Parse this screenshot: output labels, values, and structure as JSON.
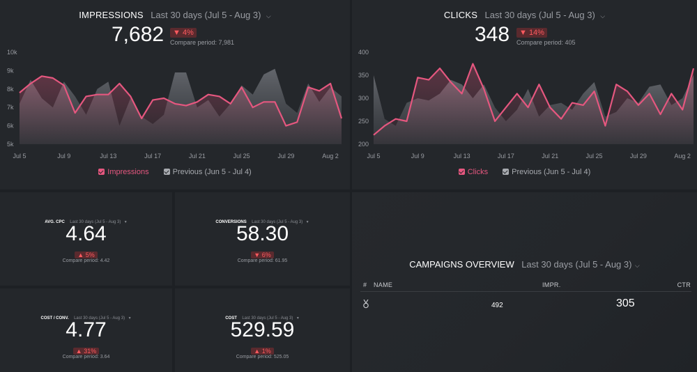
{
  "impressions": {
    "title": "IMPRESSIONS",
    "range": "Last 30 days (Jul 5 - Aug 3)",
    "value": "7,682",
    "badge": "▼ 4%",
    "compare": "Compare period: 7,981",
    "legend_current": "Impressions",
    "legend_previous": "Previous (Jun 5 - Jul 4)"
  },
  "clicks": {
    "title": "CLICKS",
    "range": "Last 30 days (Jul 5 - Aug 3)",
    "value": "348",
    "badge": "▼ 14%",
    "compare": "Compare period: 405",
    "legend_current": "Clicks",
    "legend_previous": "Previous (Jun 5 - Jul 4)"
  },
  "avg_cpc": {
    "title": "AVG. CPC",
    "range": "Last 30 days (Jul 5 - Aug 3)",
    "value": "4.64",
    "badge": "▲ 5%",
    "compare": "Compare period: 4.42"
  },
  "conversions": {
    "title": "CONVERSIONS",
    "range": "Last 30 days (Jul 5 - Aug 3)",
    "value": "58.30",
    "badge": "▼ 6%",
    "compare": "Compare period: 61.95"
  },
  "cost_conv": {
    "title": "COST / CONV.",
    "range": "Last 30 days (Jul 5 - Aug 3)",
    "value": "4.77",
    "badge": "▲ 31%",
    "compare": "Compare period: 3.64"
  },
  "cost": {
    "title": "COST",
    "range": "Last 30 days (Jul 5 - Aug 3)",
    "value": "529.59",
    "badge": "▲ 1%",
    "compare": "Compare period: 525.05"
  },
  "campaigns": {
    "title": "CAMPAIGNS OVERVIEW",
    "range": "Last 30 days (Jul 5 - Aug 3)",
    "columns": [
      "#",
      "NAME",
      "IMPR.",
      "CTR"
    ],
    "rows": [
      {
        "rank_icon": "medal-icon",
        "impr": "492",
        "ctr": "305"
      }
    ]
  },
  "chart_data": [
    {
      "type": "area",
      "title": "IMPRESSIONS",
      "x_ticks": [
        "Jul 5",
        "Jul 9",
        "Jul 13",
        "Jul 17",
        "Jul 21",
        "Jul 25",
        "Jul 29",
        "Aug 2"
      ],
      "y_ticks": [
        "5k",
        "6k",
        "7k",
        "8k",
        "9k",
        "10k"
      ],
      "ylim": [
        5000,
        10000
      ],
      "colors": {
        "current": "#e5577f",
        "previous": "#5a5d63"
      },
      "series": [
        {
          "name": "Impressions",
          "values": [
            7800,
            8300,
            8700,
            8600,
            8200,
            6700,
            7600,
            7700,
            7700,
            8300,
            7600,
            6400,
            7400,
            7500,
            7200,
            7100,
            7300,
            7700,
            7600,
            7200,
            8100,
            7000,
            7300,
            7300,
            6000,
            6200,
            8100,
            7900,
            8300,
            6400
          ]
        },
        {
          "name": "Previous (Jun 5 - Jul 4)",
          "values": [
            7200,
            8500,
            7500,
            7000,
            8400,
            7600,
            6600,
            8000,
            8400,
            6000,
            7500,
            6500,
            6100,
            6600,
            8900,
            8900,
            7000,
            7400,
            6500,
            7200,
            8200,
            7700,
            8800,
            9100,
            7200,
            6700,
            8300,
            7300,
            8100,
            7600
          ]
        }
      ]
    },
    {
      "type": "area",
      "title": "CLICKS",
      "x_ticks": [
        "Jul 5",
        "Jul 9",
        "Jul 13",
        "Jul 17",
        "Jul 21",
        "Jul 25",
        "Jul 29",
        "Aug 2"
      ],
      "y_ticks": [
        "200",
        "250",
        "300",
        "350",
        "400"
      ],
      "ylim": [
        200,
        400
      ],
      "colors": {
        "current": "#e5577f",
        "previous": "#5a5d63"
      },
      "series": [
        {
          "name": "Clicks",
          "values": [
            220,
            240,
            255,
            250,
            345,
            340,
            365,
            335,
            310,
            375,
            320,
            250,
            280,
            310,
            280,
            330,
            280,
            255,
            290,
            285,
            315,
            240,
            330,
            315,
            285,
            310,
            265,
            310,
            275,
            365
          ]
        },
        {
          "name": "Previous (Jun 5 - Jul 4)",
          "values": [
            350,
            255,
            240,
            290,
            300,
            295,
            310,
            340,
            330,
            300,
            330,
            280,
            250,
            275,
            320,
            260,
            285,
            290,
            275,
            310,
            335,
            260,
            270,
            300,
            290,
            325,
            330,
            285,
            300,
            350
          ]
        }
      ]
    }
  ]
}
